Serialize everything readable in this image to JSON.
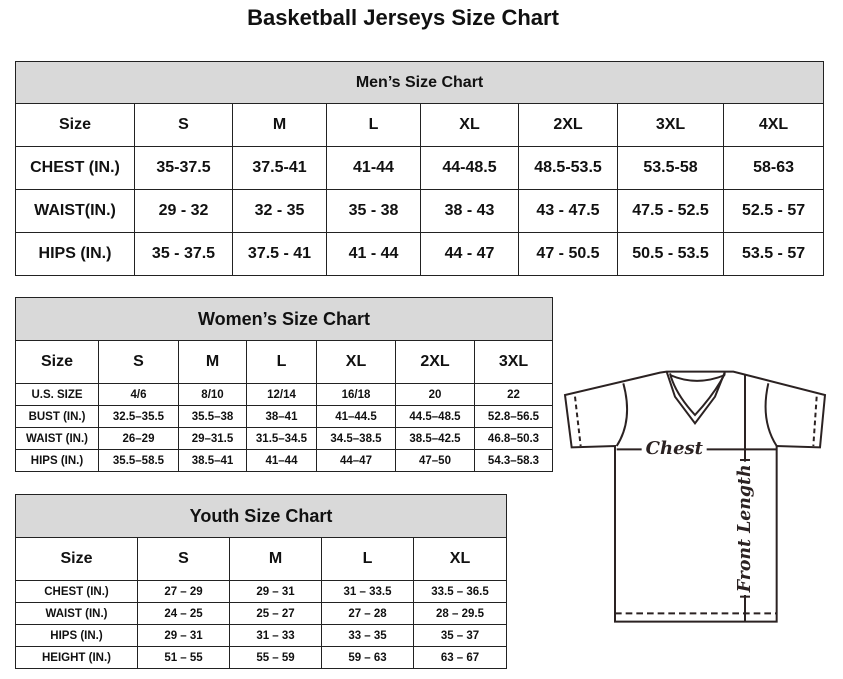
{
  "title": "Basketball Jerseys Size Chart",
  "men": {
    "heading": "Men’s Size Chart",
    "rows": [
      [
        "Size",
        "S",
        "M",
        "L",
        "XL",
        "2XL",
        "3XL",
        "4XL"
      ],
      [
        "CHEST (IN.)",
        "35-37.5",
        "37.5-41",
        "41-44",
        "44-48.5",
        "48.5-53.5",
        "53.5-58",
        "58-63"
      ],
      [
        "WAIST(IN.)",
        "29 - 32",
        "32 - 35",
        "35 - 38",
        "38 - 43",
        "43 - 47.5",
        "47.5 - 52.5",
        "52.5 - 57"
      ],
      [
        "HIPS (IN.)",
        "35 - 37.5",
        "37.5 - 41",
        "41 - 44",
        "44 - 47",
        "47 - 50.5",
        "50.5 - 53.5",
        "53.5 - 57"
      ]
    ]
  },
  "women": {
    "heading": "Women’s Size Chart",
    "rows": [
      [
        "Size",
        "S",
        "M",
        "L",
        "XL",
        "2XL",
        "3XL"
      ],
      [
        "U.S. SIZE",
        "4/6",
        "8/10",
        "12/14",
        "16/18",
        "20",
        "22"
      ],
      [
        "BUST (IN.)",
        "32.5–35.5",
        "35.5–38",
        "38–41",
        "41–44.5",
        "44.5–48.5",
        "52.8–56.5"
      ],
      [
        "WAIST (IN.)",
        "26–29",
        "29–31.5",
        "31.5–34.5",
        "34.5–38.5",
        "38.5–42.5",
        "46.8–50.3"
      ],
      [
        "HIPS (IN.)",
        "35.5–58.5",
        "38.5–41",
        "41–44",
        "44–47",
        "47–50",
        "54.3–58.3"
      ]
    ]
  },
  "youth": {
    "heading": "Youth Size Chart",
    "rows": [
      [
        "Size",
        "S",
        "M",
        "L",
        "XL"
      ],
      [
        "CHEST (IN.)",
        "27 – 29",
        "29 – 31",
        "31 – 33.5",
        "33.5 – 36.5"
      ],
      [
        "WAIST (IN.)",
        "24 – 25",
        "25 – 27",
        "27 – 28",
        "28 – 29.5"
      ],
      [
        "HIPS (IN.)",
        "29 – 31",
        "31 – 33",
        "33 – 35",
        "35 – 37"
      ],
      [
        "HEIGHT (IN.)",
        "51 – 55",
        "55 – 59",
        "59 – 63",
        "63 – 67"
      ]
    ]
  },
  "diagram": {
    "chest_label": "Chest",
    "length_label": "Front Length"
  }
}
